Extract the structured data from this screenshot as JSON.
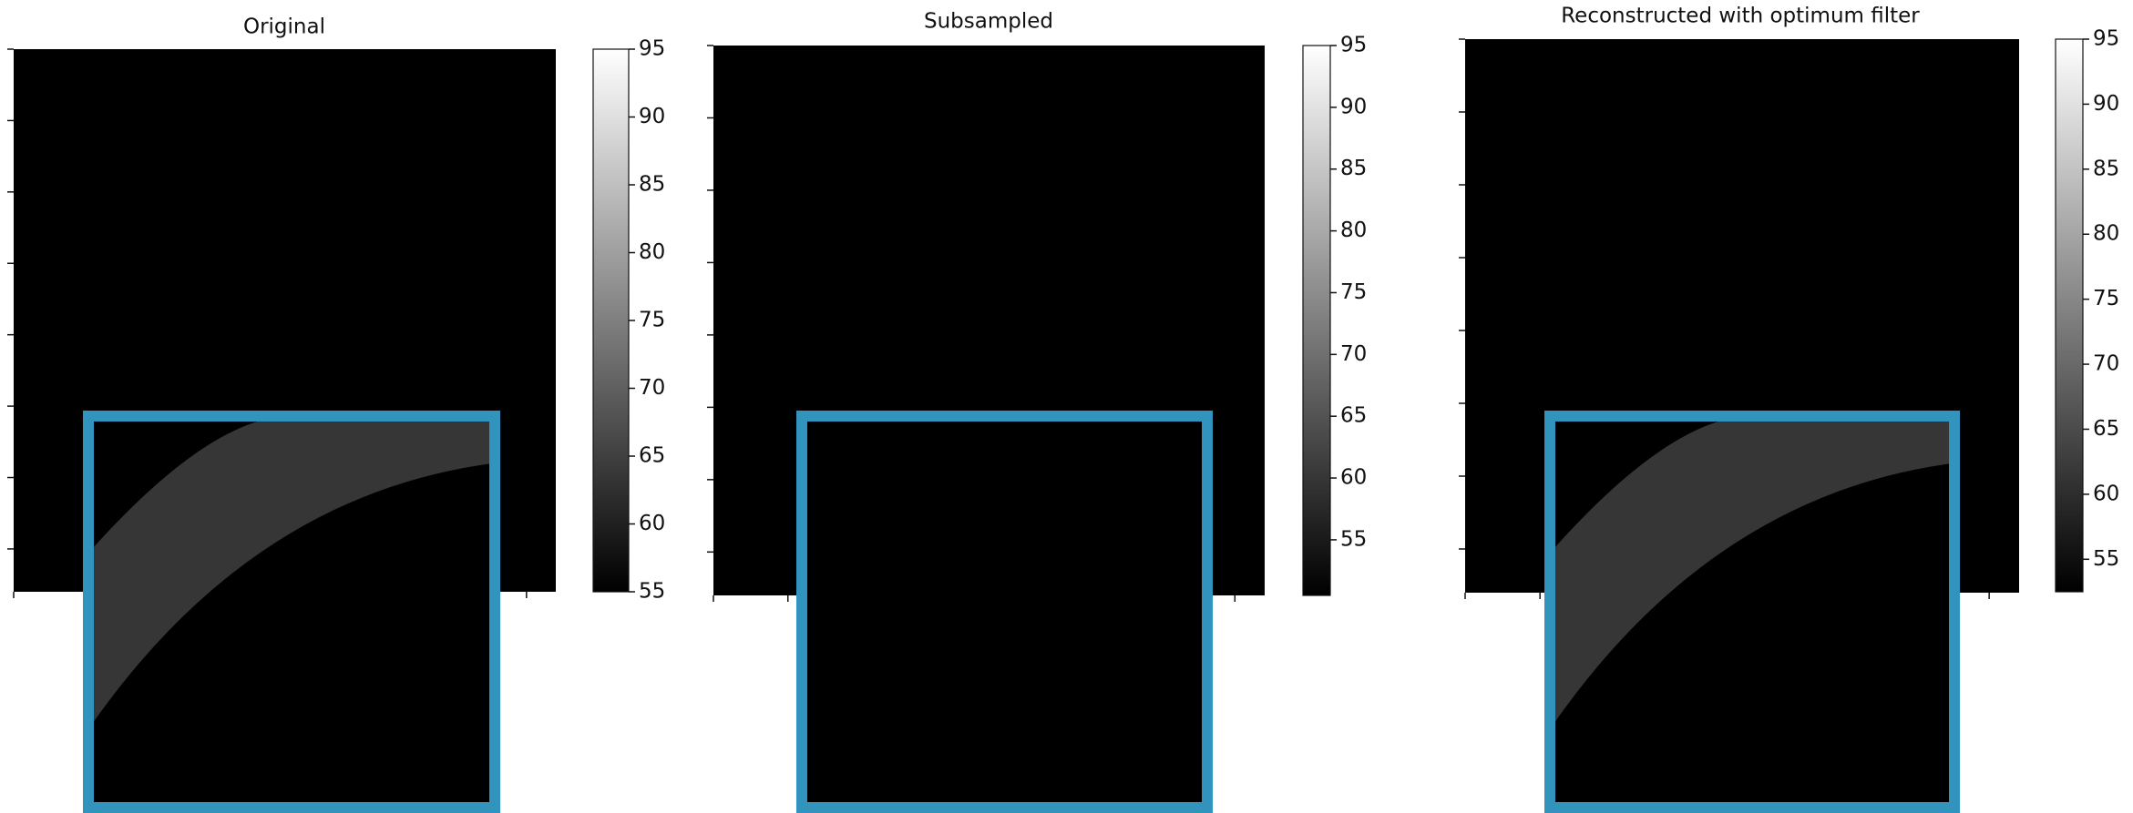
{
  "panels": [
    {
      "title": "Original",
      "colorbar": {
        "lim": [
          55,
          95
        ],
        "ticks": [
          55,
          60,
          65,
          70,
          75,
          80,
          85,
          90,
          95
        ]
      }
    },
    {
      "title": "Subsampled",
      "colorbar": {
        "lim": [
          50.5,
          95
        ],
        "ticks": [
          55,
          60,
          65,
          70,
          75,
          80,
          85,
          90,
          95
        ]
      }
    },
    {
      "title": "Reconstructed with optimum filter",
      "colorbar": {
        "lim": [
          52.5,
          95
        ],
        "ticks": [
          55,
          60,
          65,
          70,
          75,
          80,
          85,
          90,
          95
        ]
      }
    }
  ]
}
